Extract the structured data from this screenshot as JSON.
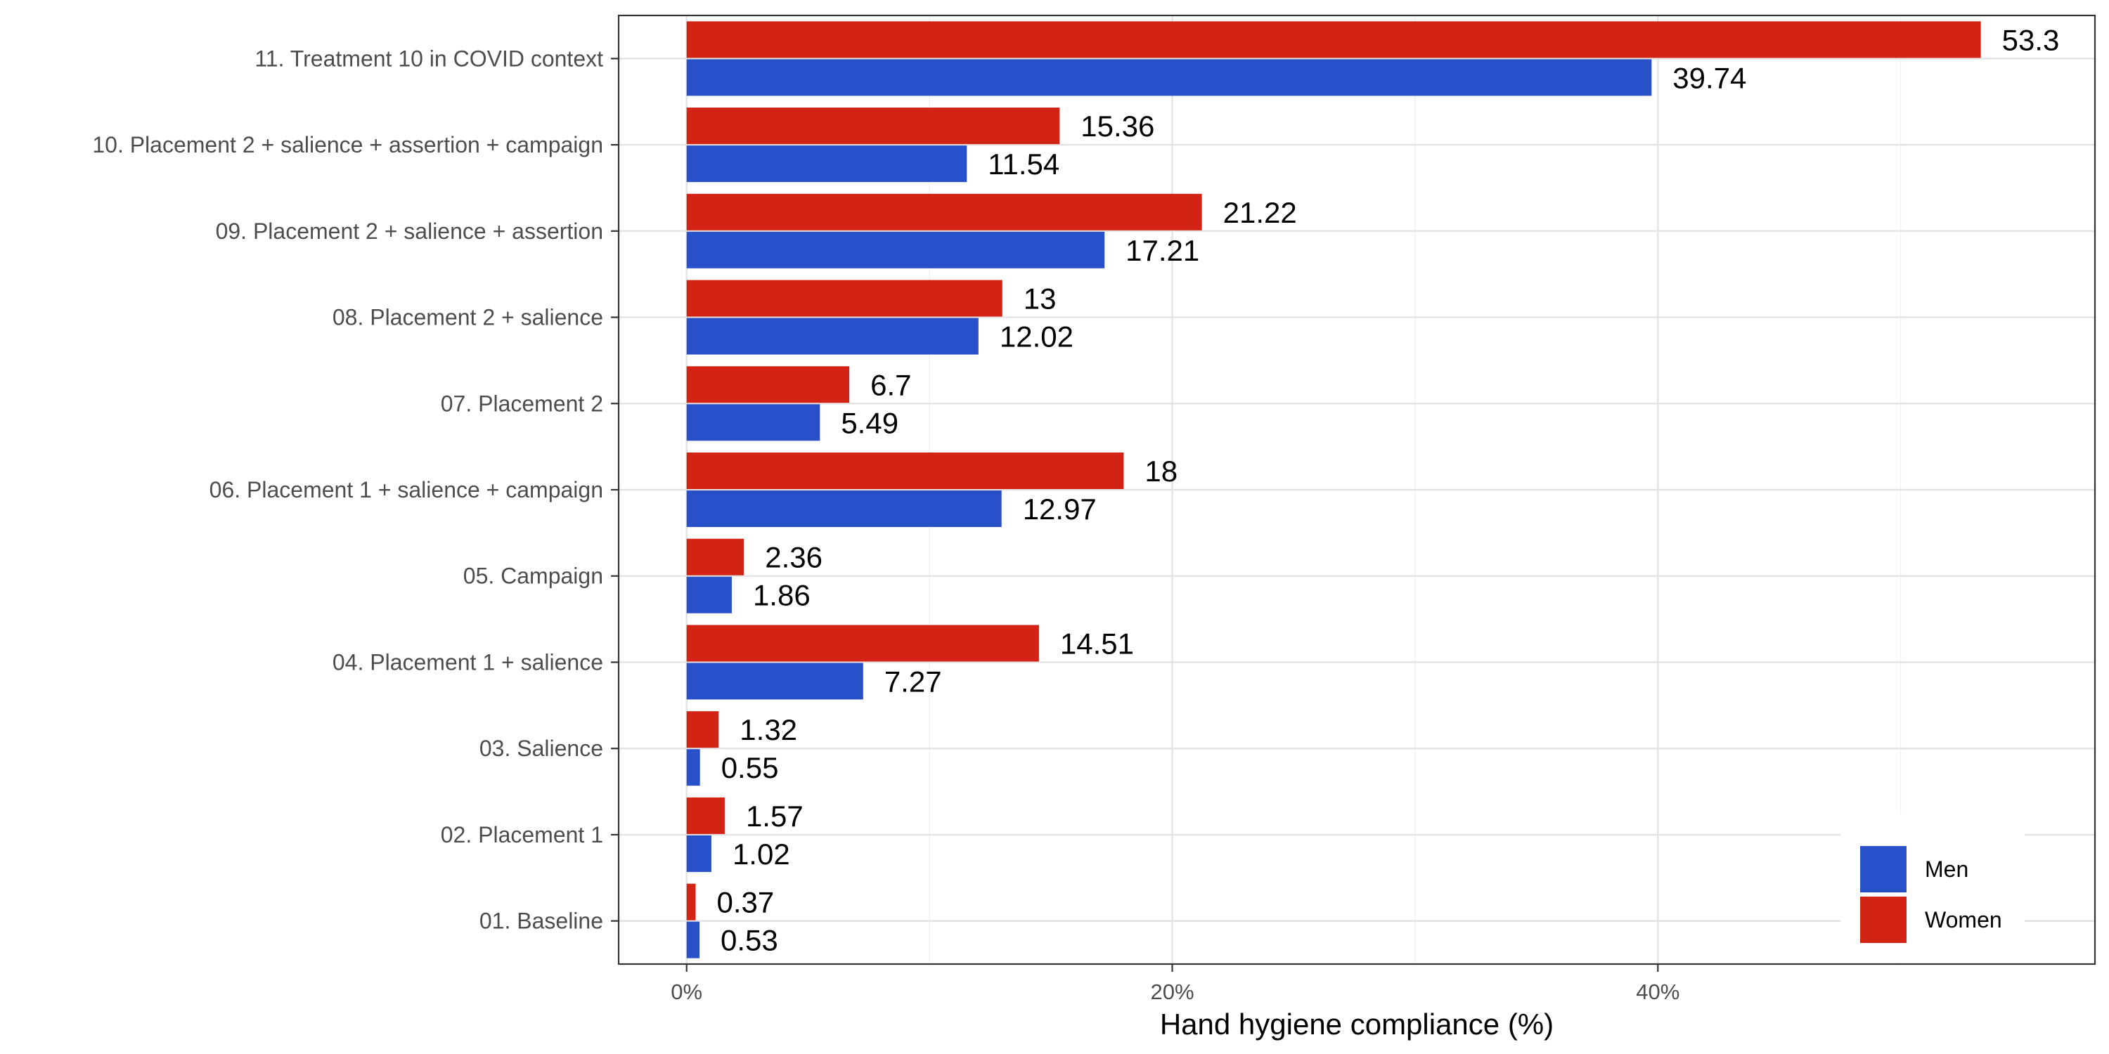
{
  "chart_data": {
    "type": "bar",
    "orientation": "horizontal",
    "categories": [
      "01. Baseline",
      "02. Placement 1",
      "03. Salience",
      "04. Placement 1 + salience",
      "05. Campaign",
      "06. Placement 1 + salience + campaign",
      "07. Placement 2",
      "08. Placement 2 + salience",
      "09. Placement 2 + salience + assertion",
      "10. Placement 2 + salience + assertion + campaign",
      "11. Treatment 10 in COVID context"
    ],
    "series": [
      {
        "name": "Men",
        "color": "#2850c8",
        "values": [
          0.53,
          1.02,
          0.55,
          7.27,
          1.86,
          12.97,
          5.49,
          12.02,
          17.21,
          11.54,
          39.74
        ]
      },
      {
        "name": "Women",
        "color": "#d22314",
        "values": [
          0.37,
          1.57,
          1.32,
          14.51,
          2.36,
          18,
          6.7,
          13,
          21.22,
          15.36,
          53.3
        ]
      }
    ],
    "value_labels": {
      "Men": [
        "0.53",
        "1.02",
        "0.55",
        "7.27",
        "1.86",
        "12.97",
        "5.49",
        "12.02",
        "17.21",
        "11.54",
        "39.74"
      ],
      "Women": [
        "0.37",
        "1.57",
        "1.32",
        "14.51",
        "2.36",
        "18",
        "6.7",
        "13",
        "21.22",
        "15.36",
        "53.3"
      ]
    },
    "xlabel": "Hand hygiene compliance (%)",
    "xlim": [
      -2.8,
      58.0
    ],
    "xticks": [
      0,
      20,
      40
    ],
    "xtick_labels": [
      "0%",
      "20%",
      "40%"
    ],
    "grid": true,
    "legend": {
      "placement": "bottom-right",
      "entries": [
        "Men",
        "Women"
      ]
    }
  }
}
